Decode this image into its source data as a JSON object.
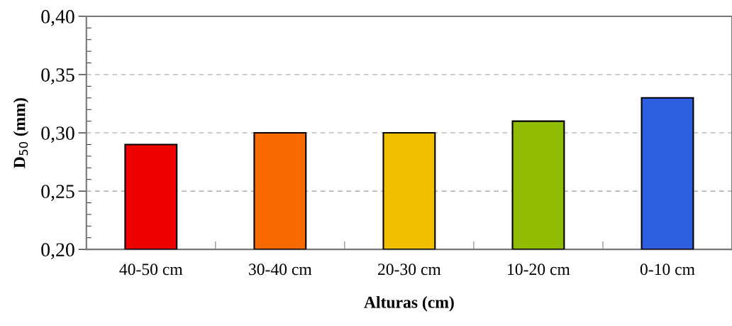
{
  "chart_data": {
    "type": "bar",
    "xlabel": "Alturas (cm)",
    "ylabel": "D$_{50}$ (mm)",
    "categories": [
      "40-50 cm",
      "30-40 cm",
      "20-30 cm",
      "10-20 cm",
      "0-10 cm"
    ],
    "values": [
      0.29,
      0.3,
      0.3,
      0.31,
      0.33
    ],
    "colors": [
      "#ee0000",
      "#f86a00",
      "#f0c000",
      "#8fbb00",
      "#2d5fe0"
    ],
    "ylim": [
      0.2,
      0.4
    ],
    "yticks": [
      {
        "value": 0.2,
        "label": "0,20"
      },
      {
        "value": 0.25,
        "label": "0,25"
      },
      {
        "value": 0.3,
        "label": "0,30"
      },
      {
        "value": 0.35,
        "label": "0,35"
      },
      {
        "value": 0.4,
        "label": "0,40"
      }
    ],
    "grid": "y"
  }
}
